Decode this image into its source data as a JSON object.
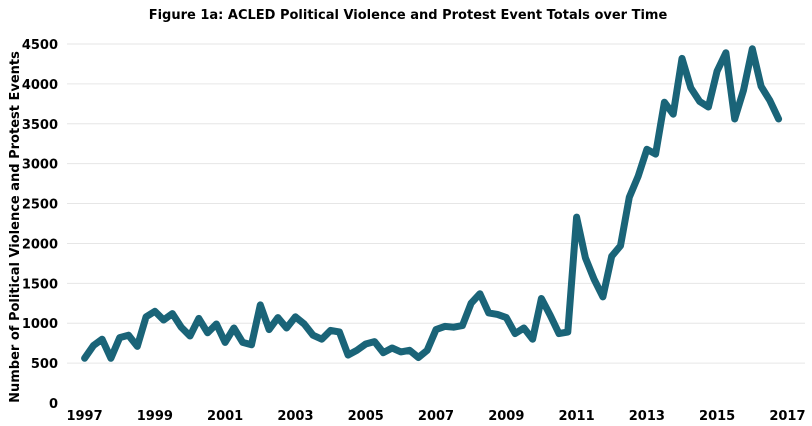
{
  "chart_data": {
    "type": "line",
    "title": "Figure 1a: ACLED Political Violence and Protest Event Totals over Time",
    "xlabel": "",
    "ylabel": "Number of Political Violence and Protest Events",
    "xlim": [
      1996.5,
      2017.5
    ],
    "ylim": [
      0,
      4500
    ],
    "x_ticks": [
      "1997",
      "1999",
      "2001",
      "2003",
      "2005",
      "2007",
      "2009",
      "2011",
      "2013",
      "2015",
      "2017"
    ],
    "y_ticks": [
      "0",
      "500",
      "1000",
      "1500",
      "2000",
      "2500",
      "3000",
      "3500",
      "4000",
      "4500"
    ],
    "grid": true,
    "line_color": "#1a6478",
    "series": [
      {
        "x": [
          1997.0,
          1997.25,
          1997.5,
          1997.75,
          1998.0,
          1998.25,
          1998.5,
          1998.75,
          1999.0,
          1999.25,
          1999.5,
          1999.75,
          2000.0,
          2000.25,
          2000.5,
          2000.75,
          2001.0,
          2001.25,
          2001.5,
          2001.75,
          2002.0,
          2002.25,
          2002.5,
          2002.75,
          2003.0,
          2003.25,
          2003.5,
          2003.75,
          2004.0,
          2004.25,
          2004.5,
          2004.75,
          2005.0,
          2005.25,
          2005.5,
          2005.75,
          2006.0,
          2006.25,
          2006.5,
          2006.75,
          2007.0,
          2007.25,
          2007.5,
          2007.75,
          2008.0,
          2008.25,
          2008.5,
          2008.75,
          2009.0,
          2009.25,
          2009.5,
          2009.75,
          2010.0,
          2010.25,
          2010.5,
          2010.75,
          2011.0,
          2011.25,
          2011.5,
          2011.75,
          2012.0,
          2012.25,
          2012.5,
          2012.75,
          2013.0,
          2013.25,
          2013.5,
          2013.75,
          2014.0,
          2014.25,
          2014.5,
          2014.75,
          2015.0,
          2015.25,
          2015.5,
          2015.75,
          2016.0,
          2016.25,
          2016.5,
          2016.75
        ],
        "values": [
          560,
          720,
          800,
          560,
          820,
          850,
          710,
          1080,
          1150,
          1040,
          1120,
          950,
          840,
          1060,
          880,
          990,
          760,
          940,
          760,
          730,
          1230,
          920,
          1070,
          940,
          1080,
          990,
          850,
          800,
          910,
          890,
          600,
          660,
          740,
          770,
          630,
          690,
          640,
          660,
          570,
          660,
          920,
          960,
          950,
          970,
          1250,
          1370,
          1130,
          1110,
          1070,
          870,
          940,
          800,
          1310,
          1100,
          870,
          890,
          2330,
          1820,
          1550,
          1330,
          1840,
          1970,
          2580,
          2840,
          3180,
          3120,
          3770,
          3620,
          4320,
          3950,
          3780,
          3710,
          4160,
          4390,
          3560,
          3920,
          4440,
          3970,
          3790,
          3560
        ]
      }
    ]
  }
}
